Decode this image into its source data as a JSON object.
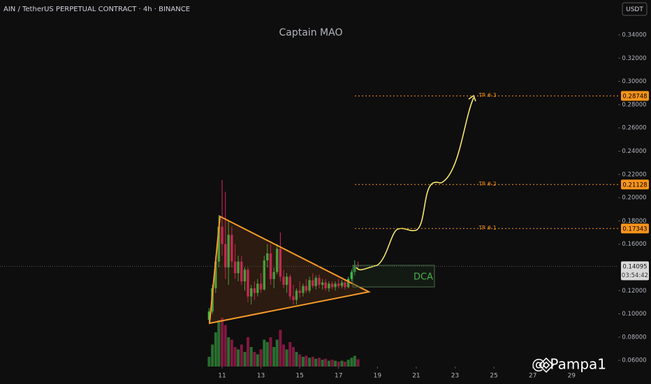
{
  "chart_data": {
    "type": "candlestick",
    "title": "AIN / TetherUS PERPETUAL CONTRACT · 4h · BINANCE",
    "watermark": "Captain MAO",
    "currency": "USDT",
    "x": [
      10.33,
      10.5,
      10.67,
      10.83,
      11,
      11.17,
      11.33,
      11.5,
      11.67,
      11.83,
      12,
      12.17,
      12.33,
      12.5,
      12.67,
      12.83,
      13,
      13.17,
      13.33,
      13.5,
      13.67,
      13.83,
      14,
      14.17,
      14.33,
      14.5,
      14.67,
      14.83,
      15,
      15.17,
      15.33,
      15.5,
      15.67,
      15.83,
      16,
      16.17,
      16.33,
      16.5,
      16.67,
      16.83,
      17,
      17.17,
      17.33,
      17.5,
      17.67,
      17.83,
      18
    ],
    "open": [
      0.095,
      0.102,
      0.122,
      0.145,
      0.175,
      0.16,
      0.14,
      0.168,
      0.145,
      0.135,
      0.145,
      0.128,
      0.138,
      0.115,
      0.122,
      0.118,
      0.126,
      0.121,
      0.146,
      0.152,
      0.13,
      0.136,
      0.156,
      0.132,
      0.125,
      0.132,
      0.115,
      0.112,
      0.12,
      0.118,
      0.124,
      0.12,
      0.129,
      0.124,
      0.131,
      0.125,
      0.127,
      0.122,
      0.126,
      0.123,
      0.126,
      0.124,
      0.127,
      0.123,
      0.13,
      0.136,
      0.142
    ],
    "high": [
      0.105,
      0.125,
      0.15,
      0.185,
      0.215,
      0.205,
      0.18,
      0.175,
      0.16,
      0.15,
      0.15,
      0.14,
      0.14,
      0.125,
      0.128,
      0.13,
      0.135,
      0.15,
      0.16,
      0.16,
      0.14,
      0.16,
      0.17,
      0.138,
      0.135,
      0.134,
      0.125,
      0.122,
      0.128,
      0.126,
      0.13,
      0.132,
      0.135,
      0.133,
      0.134,
      0.13,
      0.13,
      0.128,
      0.128,
      0.128,
      0.13,
      0.129,
      0.129,
      0.132,
      0.138,
      0.146,
      0.145
    ],
    "low": [
      0.092,
      0.1,
      0.118,
      0.14,
      0.15,
      0.13,
      0.125,
      0.14,
      0.13,
      0.128,
      0.125,
      0.12,
      0.11,
      0.108,
      0.112,
      0.115,
      0.118,
      0.12,
      0.14,
      0.125,
      0.122,
      0.134,
      0.128,
      0.122,
      0.118,
      0.112,
      0.108,
      0.108,
      0.114,
      0.115,
      0.118,
      0.118,
      0.122,
      0.121,
      0.122,
      0.121,
      0.12,
      0.119,
      0.121,
      0.12,
      0.122,
      0.122,
      0.121,
      0.122,
      0.128,
      0.133,
      0.138
    ],
    "close": [
      0.102,
      0.122,
      0.145,
      0.175,
      0.16,
      0.14,
      0.168,
      0.145,
      0.135,
      0.145,
      0.128,
      0.138,
      0.115,
      0.122,
      0.118,
      0.126,
      0.121,
      0.146,
      0.152,
      0.13,
      0.136,
      0.156,
      0.132,
      0.125,
      0.132,
      0.115,
      0.112,
      0.12,
      0.118,
      0.124,
      0.12,
      0.129,
      0.124,
      0.131,
      0.125,
      0.127,
      0.122,
      0.126,
      0.123,
      0.126,
      0.124,
      0.127,
      0.123,
      0.13,
      0.136,
      0.142,
      0.141
    ],
    "volume": [
      20,
      45,
      70,
      95,
      100,
      85,
      60,
      55,
      40,
      35,
      45,
      30,
      60,
      40,
      30,
      25,
      35,
      55,
      50,
      60,
      40,
      55,
      75,
      45,
      35,
      50,
      40,
      30,
      25,
      20,
      22,
      18,
      20,
      16,
      18,
      14,
      16,
      12,
      14,
      12,
      10,
      12,
      10,
      14,
      18,
      22,
      15
    ],
    "xlim": [
      -0.44,
      31.4
    ],
    "xticks": [
      11,
      13,
      15,
      17,
      19,
      21,
      23,
      25,
      27,
      29
    ],
    "ylim": [
      0.0547,
      0.37
    ],
    "yticks": [
      {
        "value": 0.06,
        "label": "0.06000"
      },
      {
        "value": 0.08,
        "label": "0.08000"
      },
      {
        "value": 0.1,
        "label": "0.10000"
      },
      {
        "value": 0.12,
        "label": "0.12000"
      },
      {
        "value": 0.16,
        "label": "0.16000"
      },
      {
        "value": 0.18,
        "label": "0.18000"
      },
      {
        "value": 0.2,
        "label": "0.20000"
      },
      {
        "value": 0.22,
        "label": "0.22000"
      },
      {
        "value": 0.24,
        "label": "0.24000"
      },
      {
        "value": 0.26,
        "label": "0.26000"
      },
      {
        "value": 0.28,
        "label": "0.28000"
      },
      {
        "value": 0.3,
        "label": "0.30000"
      },
      {
        "value": 0.32,
        "label": "0.32000"
      },
      {
        "value": 0.34,
        "label": "0.34000"
      }
    ],
    "levels": [
      {
        "name": "TP # 1",
        "value": 0.17343
      },
      {
        "name": "TP # 2",
        "value": 0.21128
      },
      {
        "name": "TP # 3",
        "value": 0.28748
      }
    ],
    "last_price": 0.14095,
    "countdown": "03:54:42",
    "annotation": "DCA",
    "signature": "@ Pampa1",
    "up_color": "#3fbf4a",
    "down_color": "#e0206a",
    "level_color": "#f7931a"
  }
}
